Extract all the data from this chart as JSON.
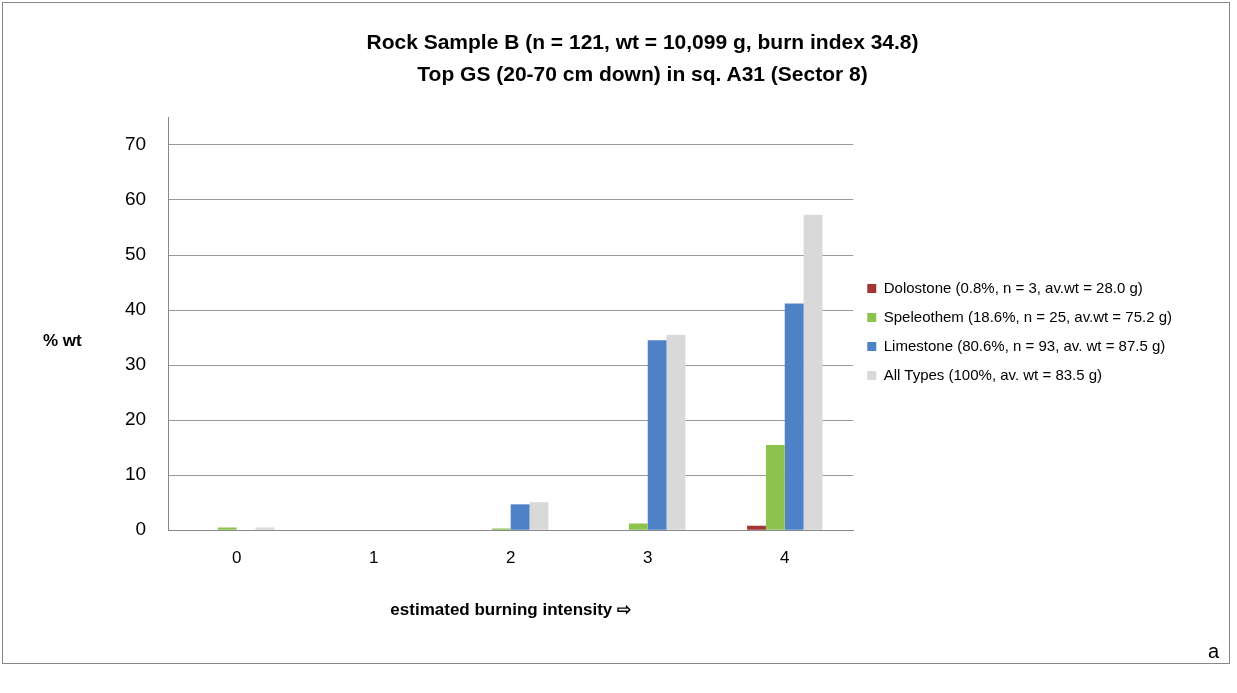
{
  "chart_data": {
    "type": "bar",
    "title": "Rock Sample B (n = 121, wt = 10,099 g, burn index 34.8)",
    "subtitle": "Top GS (20-70 cm down) in sq. A31 (Sector 8)",
    "xlabel": "estimated burning intensity ⇨",
    "ylabel": "% wt",
    "categories": [
      "0",
      "1",
      "2",
      "3",
      "4"
    ],
    "series": [
      {
        "name": "Dolostone (0.8%, n = 3, av.wt = 28.0 g)",
        "color": "#a33634",
        "values": [
          0,
          0,
          0,
          0,
          0.8
        ]
      },
      {
        "name": "Speleothem (18.6%, n = 25, av.wt = 75.2 g)",
        "color": "#8dc24f",
        "values": [
          0.5,
          0,
          0.3,
          1.2,
          15.5
        ]
      },
      {
        "name": "Limestone (80.6%, n = 93, av. wt = 87.5 g)",
        "color": "#4f81c7",
        "values": [
          0.1,
          0,
          4.7,
          34.5,
          41.2
        ]
      },
      {
        "name": "All Types (100%, av. wt = 83.5 g)",
        "color": "#d9d9d9",
        "values": [
          0.5,
          0,
          5.1,
          35.5,
          57.3
        ]
      }
    ],
    "ylim": [
      0,
      75
    ],
    "yticks": [
      0,
      10,
      20,
      30,
      40,
      50,
      60,
      70
    ],
    "grid": "y",
    "legend": "right",
    "annotations": [
      "a"
    ]
  }
}
